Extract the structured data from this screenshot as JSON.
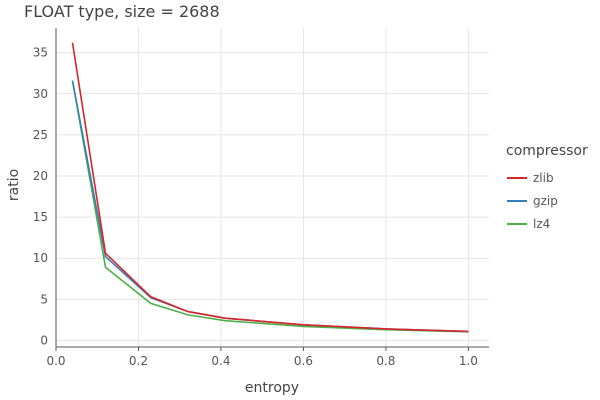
{
  "chart_data": {
    "type": "line",
    "title": "FLOAT type, size = 2688",
    "xlabel": "entropy",
    "ylabel": "ratio",
    "xlim": [
      0.0,
      1.05
    ],
    "ylim": [
      -0.8,
      38
    ],
    "xticks": [
      "0.0",
      "0.2",
      "0.4",
      "0.6",
      "0.8",
      "1.0"
    ],
    "xtick_values": [
      0.0,
      0.2,
      0.4,
      0.6,
      0.8,
      1.0
    ],
    "yticks": [
      "0",
      "5",
      "10",
      "15",
      "20",
      "25",
      "30",
      "35"
    ],
    "ytick_values": [
      0,
      5,
      10,
      15,
      20,
      25,
      30,
      35
    ],
    "grid": true,
    "legend_title": "compressor",
    "legend_position": "right",
    "x": [
      0.04,
      0.12,
      0.23,
      0.32,
      0.41,
      0.6,
      0.8,
      1.0
    ],
    "series": [
      {
        "name": "zlib",
        "color": "#d62728",
        "values": [
          36.2,
          10.6,
          5.3,
          3.5,
          2.7,
          1.9,
          1.4,
          1.1
        ]
      },
      {
        "name": "gzip",
        "color": "#377eb8",
        "values": [
          31.6,
          10.2,
          5.2,
          3.5,
          2.7,
          1.9,
          1.4,
          1.1
        ]
      },
      {
        "name": "lz4",
        "color": "#4daf4a",
        "values": [
          31.6,
          8.9,
          4.5,
          3.1,
          2.4,
          1.7,
          1.3,
          1.05
        ]
      }
    ]
  }
}
